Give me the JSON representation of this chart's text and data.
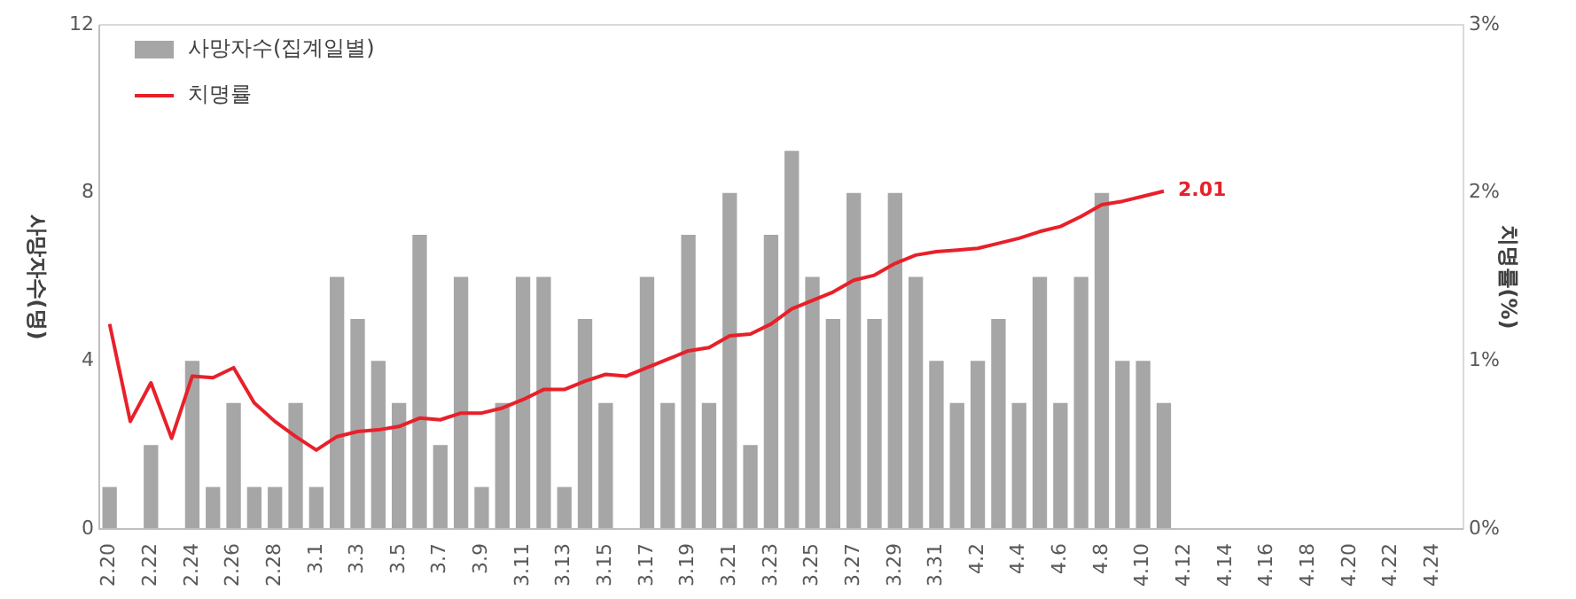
{
  "chart_data": {
    "type": "bar",
    "ylabel": "사망자수(명)",
    "y2label": "치명률(%)",
    "categories": [
      "2.20",
      null,
      "2.22",
      null,
      "2.24",
      null,
      "2.26",
      null,
      "2.28",
      null,
      "3.1",
      null,
      "3.3",
      null,
      "3.5",
      null,
      "3.7",
      null,
      "3.9",
      null,
      "3.11",
      null,
      "3.13",
      null,
      "3.15",
      null,
      "3.17",
      null,
      "3.19",
      null,
      "3.21",
      null,
      "3.23",
      null,
      "3.25",
      null,
      "3.27",
      null,
      "3.29",
      null,
      "3.31",
      null,
      "4.2",
      null,
      "4.4",
      null,
      "4.6",
      null,
      "4.8",
      null,
      "4.10",
      null,
      "4.12",
      null,
      "4.14",
      null,
      "4.16",
      null,
      "4.18",
      null,
      "4.20",
      null,
      "4.22",
      null,
      "4.24",
      null
    ],
    "series": [
      {
        "name": "사망자수(집계일별)",
        "color": "#a6a6a6",
        "values": [
          1,
          0,
          2,
          0,
          4,
          1,
          3,
          1,
          1,
          3,
          1,
          6,
          5,
          4,
          3,
          7,
          2,
          6,
          1,
          3,
          6,
          6,
          1,
          5,
          3,
          0,
          6,
          3,
          7,
          3,
          8,
          2,
          7,
          9,
          6,
          5,
          8,
          5,
          8,
          6,
          4,
          3,
          4,
          5,
          3,
          6,
          3,
          6,
          8,
          4,
          4,
          3,
          null,
          null,
          null,
          null,
          null,
          null,
          null,
          null,
          null,
          null,
          null,
          null,
          null,
          null
        ]
      },
      {
        "name": "치명률",
        "type": "line",
        "axis": "y2",
        "color": "#e8202a",
        "values": [
          1.22,
          0.64,
          0.87,
          0.54,
          0.91,
          0.9,
          0.96,
          0.75,
          0.64,
          0.55,
          0.47,
          0.55,
          0.58,
          0.59,
          0.61,
          0.66,
          0.65,
          0.69,
          0.69,
          0.72,
          0.77,
          0.83,
          0.83,
          0.88,
          0.92,
          0.91,
          0.96,
          1.01,
          1.06,
          1.08,
          1.15,
          1.16,
          1.22,
          1.31,
          1.36,
          1.41,
          1.48,
          1.51,
          1.58,
          1.63,
          1.65,
          1.66,
          1.67,
          1.7,
          1.73,
          1.77,
          1.8,
          1.86,
          1.93,
          1.95,
          1.98,
          2.01,
          null,
          null,
          null,
          null,
          null,
          null,
          null,
          null,
          null,
          null,
          null,
          null,
          null,
          null
        ],
        "value_labels": [
          null,
          null,
          null,
          null,
          null,
          null,
          null,
          null,
          null,
          null,
          null,
          null,
          null,
          null,
          null,
          null,
          null,
          null,
          null,
          null,
          null,
          null,
          null,
          null,
          null,
          null,
          null,
          null,
          null,
          null,
          null,
          null,
          null,
          null,
          null,
          null,
          null,
          null,
          null,
          null,
          null,
          null,
          null,
          null,
          null,
          null,
          null,
          null,
          null,
          null,
          null,
          "2.01",
          null,
          null,
          null,
          null,
          null,
          null,
          null,
          null,
          null,
          null,
          null,
          null,
          null,
          null
        ]
      }
    ],
    "ylim": [
      0,
      12
    ],
    "yticks": [
      0,
      4,
      8,
      12
    ],
    "y2lim": [
      0,
      3
    ],
    "y2ticks": [
      {
        "value": 0,
        "label": "0%"
      },
      {
        "value": 1,
        "label": "1%"
      },
      {
        "value": 2,
        "label": "2%"
      },
      {
        "value": 3,
        "label": "3%"
      }
    ],
    "grid": false,
    "legend": "top left",
    "marker": "none",
    "line_style": "solid"
  }
}
